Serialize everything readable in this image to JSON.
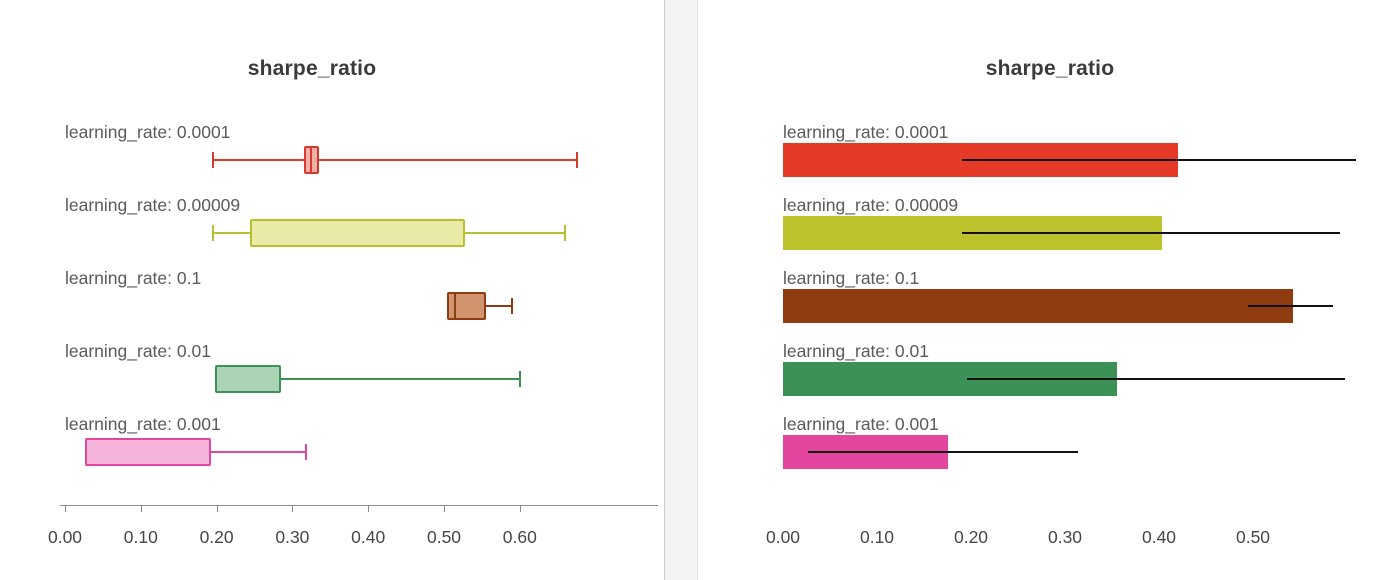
{
  "chart_data": [
    {
      "type": "boxplot",
      "title": "sharpe_ratio",
      "orientation": "horizontal",
      "xlabel": "",
      "xlim": [
        0.0,
        0.78
      ],
      "grid": false,
      "xticks": [
        "0.00",
        "0.10",
        "0.20",
        "0.30",
        "0.40",
        "0.50",
        "0.60"
      ],
      "xtick_values": [
        0.0,
        0.1,
        0.2,
        0.3,
        0.4,
        0.5,
        0.6
      ],
      "groups": [
        {
          "label": "learning_rate: 0.0001",
          "whisker_low": 0.195,
          "q1": 0.315,
          "median": 0.325,
          "q3": 0.335,
          "whisker_high": 0.675,
          "stroke": "#d93a2b",
          "fill": "#f2b0a6"
        },
        {
          "label": "learning_rate: 0.00009",
          "whisker_low": 0.195,
          "q1": 0.244,
          "median": null,
          "q3": 0.528,
          "whisker_high": 0.66,
          "stroke": "#b9c02f",
          "fill": "#eaeaa8"
        },
        {
          "label": "learning_rate: 0.1",
          "whisker_low": 0.504,
          "q1": 0.504,
          "median": 0.515,
          "q3": 0.556,
          "whisker_high": 0.59,
          "stroke": "#8f3c10",
          "fill": "#d1946f"
        },
        {
          "label": "learning_rate: 0.01",
          "whisker_low": 0.198,
          "q1": 0.198,
          "median": null,
          "q3": 0.285,
          "whisker_high": 0.6,
          "stroke": "#3c9156",
          "fill": "#abd3b4"
        },
        {
          "label": "learning_rate: 0.001",
          "whisker_low": 0.027,
          "q1": 0.027,
          "median": null,
          "q3": 0.193,
          "whisker_high": 0.318,
          "stroke": "#e3459f",
          "fill": "#f5b5da"
        }
      ]
    },
    {
      "type": "bar",
      "title": "sharpe_ratio",
      "orientation": "horizontal",
      "xlabel": "",
      "xlim": [
        0.0,
        0.63
      ],
      "grid": false,
      "xticks": [
        "0.00",
        "0.10",
        "0.20",
        "0.30",
        "0.40",
        "0.50"
      ],
      "xtick_values": [
        0.0,
        0.1,
        0.2,
        0.3,
        0.4,
        0.5
      ],
      "error_bar_color": "#111111",
      "bars": [
        {
          "label": "learning_rate: 0.0001",
          "value": 0.42,
          "error_low": 0.19,
          "error_high": 0.61,
          "color": "#e53a28"
        },
        {
          "label": "learning_rate: 0.00009",
          "value": 0.403,
          "error_low": 0.19,
          "error_high": 0.593,
          "color": "#bcc22c"
        },
        {
          "label": "learning_rate: 0.1",
          "value": 0.543,
          "error_low": 0.495,
          "error_high": 0.585,
          "color": "#8f3c10"
        },
        {
          "label": "learning_rate: 0.01",
          "value": 0.355,
          "error_low": 0.196,
          "error_high": 0.598,
          "color": "#3c9156"
        },
        {
          "label": "learning_rate: 0.001",
          "value": 0.175,
          "error_low": 0.027,
          "error_high": 0.314,
          "color": "#e3459f"
        }
      ]
    }
  ]
}
